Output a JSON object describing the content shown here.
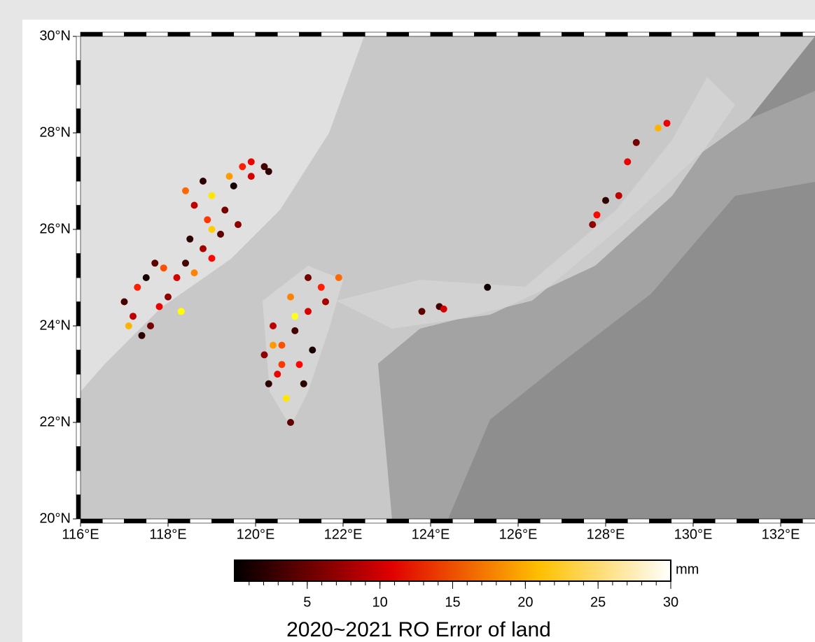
{
  "map": {
    "type": "scatter",
    "title": "2020~2021 RO Error of land",
    "xlim": [
      116,
      133
    ],
    "ylim": [
      20,
      30
    ],
    "xticks": [
      {
        "value": 116,
        "label": "116°E"
      },
      {
        "value": 118,
        "label": "118°E"
      },
      {
        "value": 120,
        "label": "120°E"
      },
      {
        "value": 122,
        "label": "122°E"
      },
      {
        "value": 124,
        "label": "124°E"
      },
      {
        "value": 126,
        "label": "126°E"
      },
      {
        "value": 128,
        "label": "128°E"
      },
      {
        "value": 130,
        "label": "130°E"
      },
      {
        "value": 132,
        "label": "132°E"
      }
    ],
    "yticks": [
      {
        "value": 20,
        "label": "20°N"
      },
      {
        "value": 22,
        "label": "22°N"
      },
      {
        "value": 24,
        "label": "24°N"
      },
      {
        "value": 26,
        "label": "26°N"
      },
      {
        "value": 28,
        "label": "28°N"
      },
      {
        "value": 30,
        "label": "30°N"
      }
    ],
    "colorbar": {
      "unit": "mm",
      "lim": [
        0,
        30
      ],
      "ticks": [
        5,
        10,
        15,
        20,
        25,
        30
      ]
    },
    "points": {
      "lon": [
        117.0,
        117.2,
        117.4,
        117.3,
        117.6,
        117.8,
        117.5,
        117.9,
        118.0,
        118.2,
        118.4,
        118.6,
        118.8,
        118.5,
        119.0,
        119.2,
        118.9,
        118.6,
        119.0,
        119.3,
        119.5,
        119.7,
        119.4,
        119.9,
        120.2,
        119.6,
        118.4,
        118.8,
        117.1,
        117.7,
        118.3,
        119.0,
        119.9,
        120.3,
        120.3,
        120.5,
        120.2,
        120.6,
        120.9,
        121.2,
        121.5,
        121.2,
        120.8,
        120.4,
        120.7,
        120.8,
        121.0,
        121.3,
        121.6,
        121.9,
        120.9,
        120.6,
        121.1,
        120.4,
        123.8,
        124.2,
        124.3,
        125.3,
        127.7,
        127.8,
        128.0,
        128.3,
        128.5,
        128.7,
        129.2,
        129.4
      ],
      "lat": [
        24.5,
        24.2,
        23.8,
        24.8,
        24.0,
        24.4,
        25.0,
        25.2,
        24.6,
        25.0,
        25.3,
        25.1,
        25.6,
        25.8,
        25.4,
        25.9,
        26.2,
        26.5,
        26.7,
        26.4,
        26.9,
        27.3,
        27.1,
        27.1,
        27.3,
        26.1,
        26.8,
        27.0,
        24.0,
        25.3,
        24.3,
        26.0,
        27.4,
        27.2,
        22.8,
        23.0,
        23.4,
        23.6,
        23.9,
        24.3,
        24.8,
        25.0,
        24.6,
        24.0,
        22.5,
        22.0,
        23.2,
        23.5,
        24.5,
        25.0,
        24.2,
        23.2,
        22.8,
        23.6,
        24.3,
        24.4,
        24.35,
        24.8,
        26.1,
        26.3,
        26.6,
        26.7,
        27.4,
        27.8,
        28.1,
        28.2
      ],
      "values": [
        3,
        8,
        2,
        12,
        5,
        10,
        1,
        14,
        6,
        9,
        3,
        16,
        7,
        2,
        11,
        4,
        13,
        8,
        20,
        5,
        1,
        12,
        17,
        9,
        3,
        6,
        15,
        2,
        18,
        4,
        21,
        19,
        10,
        2,
        2,
        10,
        6,
        14,
        3,
        9,
        12,
        5,
        16,
        8,
        20,
        4,
        11,
        1,
        7,
        15,
        22,
        13,
        2,
        17,
        4,
        3,
        9,
        0.5,
        6,
        11,
        2,
        8,
        10,
        5,
        18,
        10
      ]
    }
  }
}
